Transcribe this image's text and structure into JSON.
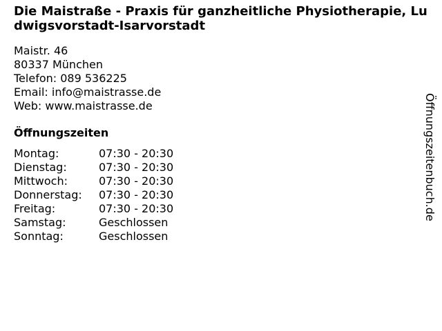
{
  "business": {
    "title": "Die Maistraße - Praxis für ganzheitliche Physiotherapie, Ludwigsvorstadt-Isarvorstadt",
    "street": "Maistr. 46",
    "city": "80337 München",
    "phone": "Telefon: 089 536225",
    "email": "Email: info@maistrasse.de",
    "web": "Web: www.maistrasse.de"
  },
  "hours": {
    "heading": "Öffnungszeiten",
    "rows": [
      {
        "day": "Montag:",
        "time": "07:30 - 20:30"
      },
      {
        "day": "Dienstag:",
        "time": "07:30 - 20:30"
      },
      {
        "day": "Mittwoch:",
        "time": "07:30 - 20:30"
      },
      {
        "day": "Donnerstag:",
        "time": "07:30 - 20:30"
      },
      {
        "day": "Freitag:",
        "time": "07:30 - 20:30"
      },
      {
        "day": "Samstag:",
        "time": "Geschlossen"
      },
      {
        "day": "Sonntag:",
        "time": "Geschlossen"
      }
    ]
  },
  "watermark": "Öffnungszeitenbuch.de"
}
